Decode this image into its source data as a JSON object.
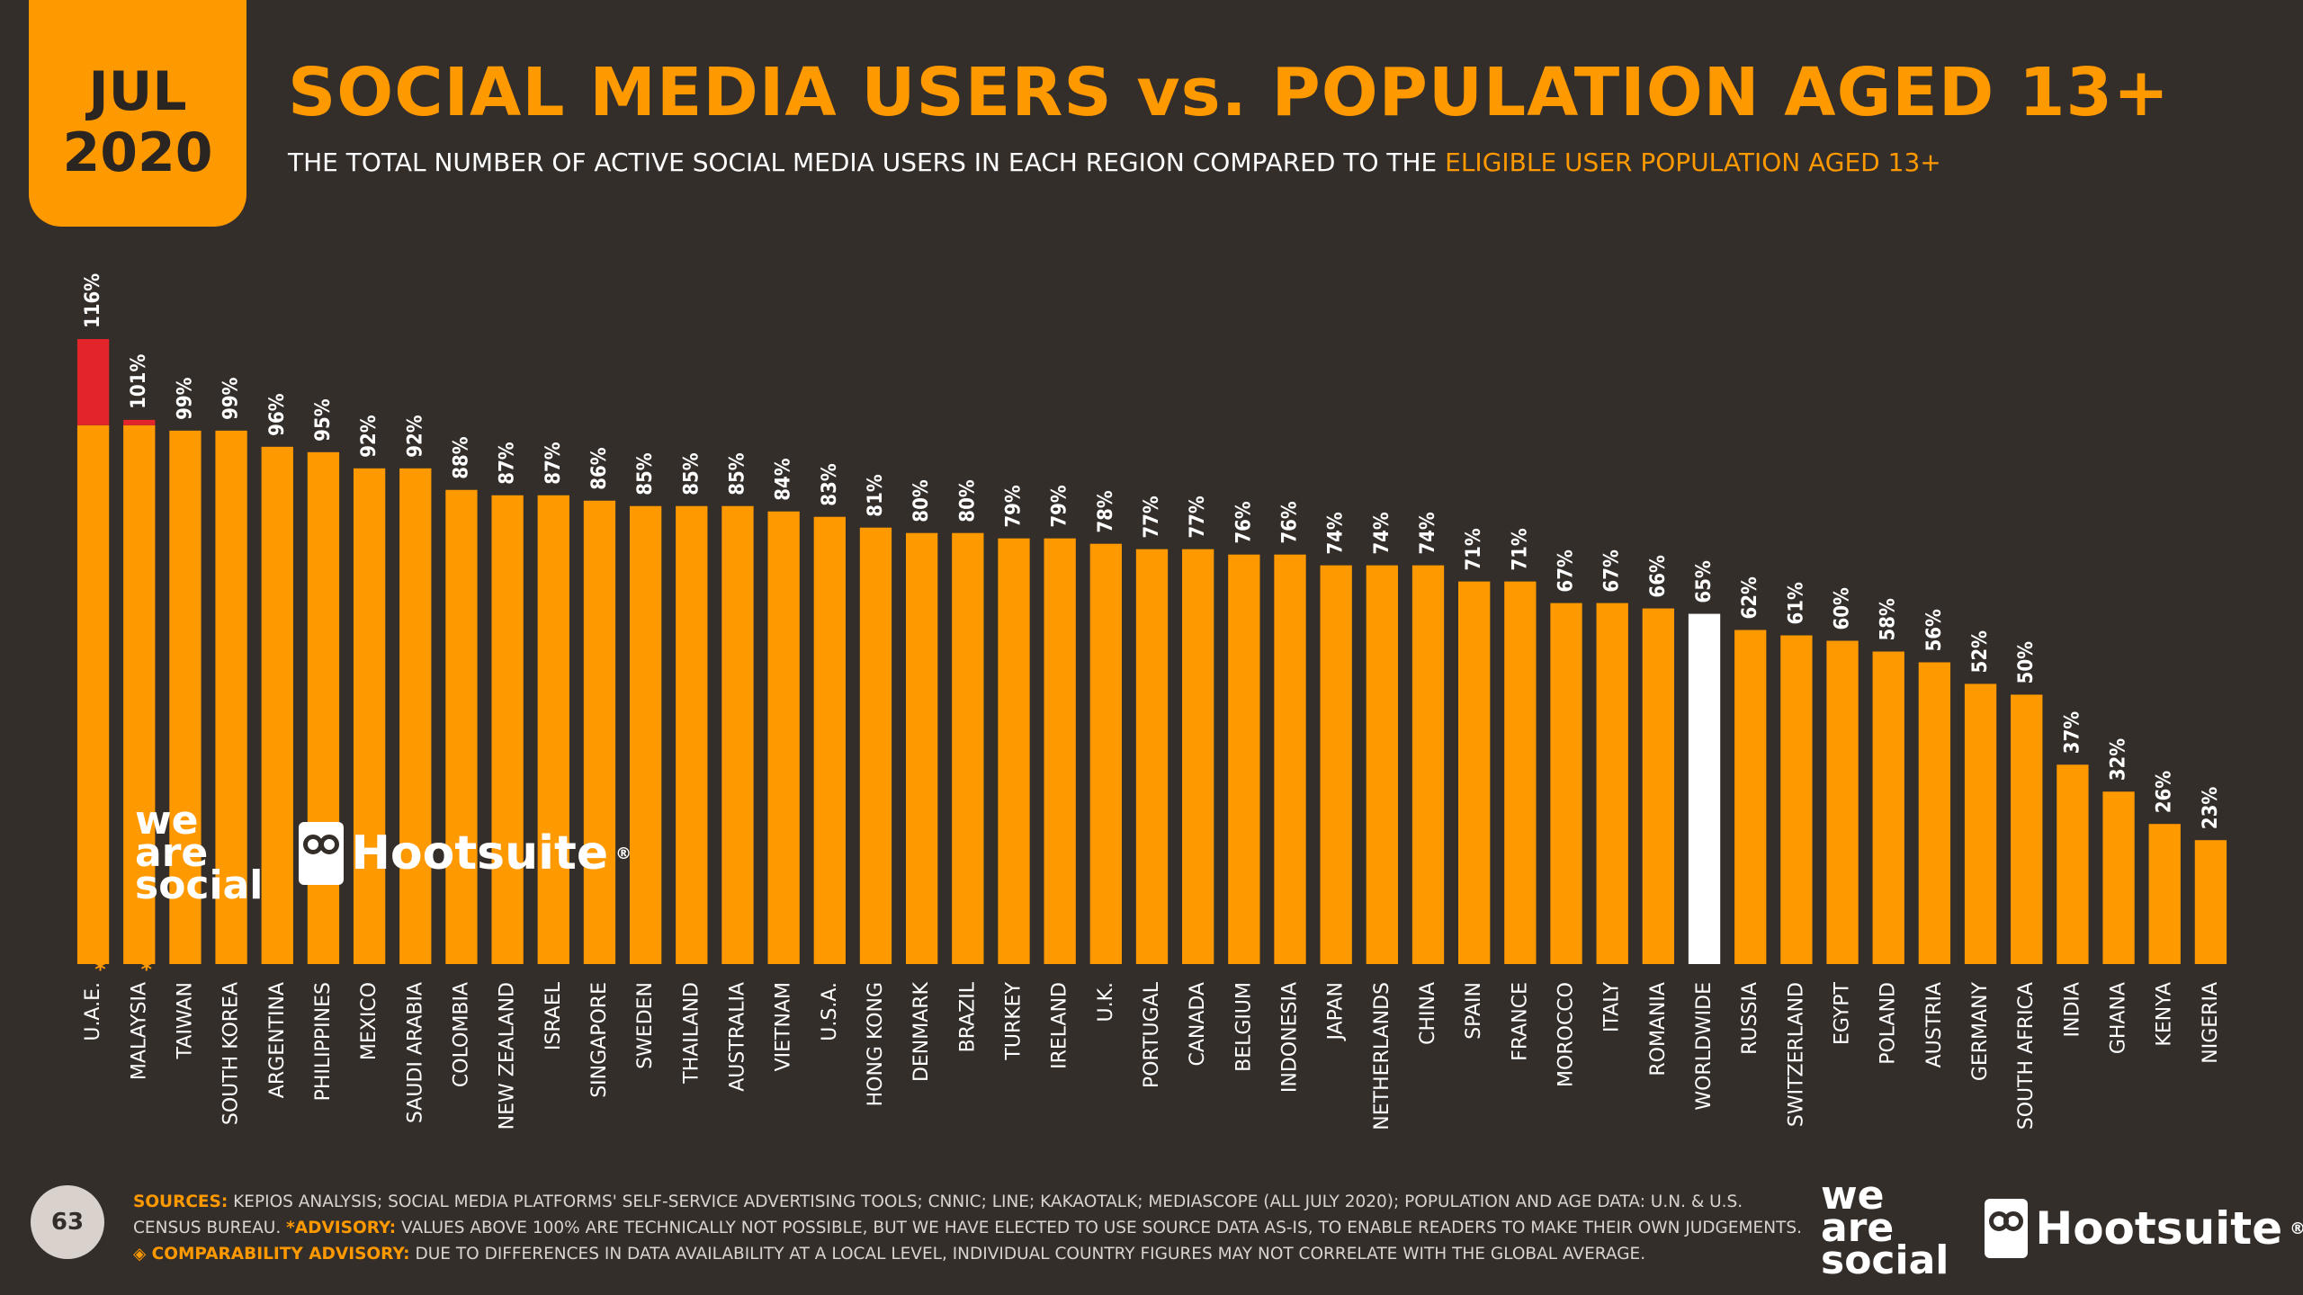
{
  "badge": {
    "month": "JUL",
    "year": "2020"
  },
  "title": "SOCIAL MEDIA USERS vs. POPULATION AGED 13+",
  "subtitle": {
    "main": "THE TOTAL NUMBER OF ACTIVE SOCIAL MEDIA USERS IN EACH REGION COMPARED TO THE ",
    "highlight": "ELIGIBLE USER POPULATION AGED 13+"
  },
  "brand": {
    "we_are_social": [
      "we",
      "are",
      "social"
    ],
    "hootsuite": "Hootsuite",
    "registered": "®"
  },
  "footer": {
    "page_number": "63",
    "sources_label": "SOURCES:",
    "sources_text": " KEPIOS ANALYSIS; SOCIAL MEDIA PLATFORMS' SELF-SERVICE ADVERTISING TOOLS; CNNIC; LINE; KAKAOTALK; MEDIASCOPE (ALL JULY 2020); POPULATION AND AGE DATA: U.N. & U.S. CENSUS BUREAU. ",
    "advisory_label": "*ADVISORY:",
    "advisory_text": " VALUES ABOVE 100% ARE TECHNICALLY NOT POSSIBLE, BUT WE HAVE ELECTED TO USE SOURCE DATA AS-IS, TO ENABLE READERS TO MAKE THEIR OWN JUDGEMENTS. ",
    "comparability_label": "◈ COMPARABILITY ADVISORY:",
    "comparability_text": " DUE TO DIFFERENCES IN DATA AVAILABILITY AT A LOCAL LEVEL, INDIVIDUAL COUNTRY FIGURES MAY NOT CORRELATE WITH THE GLOBAL AVERAGE."
  },
  "colors": {
    "bar": "#ff9900",
    "excess": "#e3242b",
    "highlight": "#ffffff",
    "background": "#342e2b",
    "asterisk": "#ff9900"
  },
  "chart_data": {
    "type": "bar",
    "categories": [
      "U.A.E.",
      "MALAYSIA",
      "TAIWAN",
      "SOUTH KOREA",
      "ARGENTINA",
      "PHILIPPINES",
      "MEXICO",
      "SAUDI ARABIA",
      "COLOMBIA",
      "NEW ZEALAND",
      "ISRAEL",
      "SINGAPORE",
      "SWEDEN",
      "THAILAND",
      "AUSTRALIA",
      "VIETNAM",
      "U.S.A.",
      "HONG KONG",
      "DENMARK",
      "BRAZIL",
      "TURKEY",
      "IRELAND",
      "U.K.",
      "PORTUGAL",
      "CANADA",
      "BELGIUM",
      "INDONESIA",
      "JAPAN",
      "NETHERLANDS",
      "CHINA",
      "SPAIN",
      "FRANCE",
      "MOROCCO",
      "ITALY",
      "ROMANIA",
      "WORLDWIDE",
      "RUSSIA",
      "SWITZERLAND",
      "EGYPT",
      "POLAND",
      "AUSTRIA",
      "GERMANY",
      "SOUTH AFRICA",
      "INDIA",
      "GHANA",
      "KENYA",
      "NIGERIA"
    ],
    "values": [
      116,
      101,
      99,
      99,
      96,
      95,
      92,
      92,
      88,
      87,
      87,
      86,
      85,
      85,
      85,
      84,
      83,
      81,
      80,
      80,
      79,
      79,
      78,
      77,
      77,
      76,
      76,
      74,
      74,
      74,
      71,
      71,
      67,
      67,
      66,
      65,
      62,
      61,
      60,
      58,
      56,
      52,
      50,
      37,
      32,
      26,
      23
    ],
    "value_labels": [
      "116%",
      "101%",
      "99%",
      "99%",
      "96%",
      "95%",
      "92%",
      "92%",
      "88%",
      "87%",
      "87%",
      "86%",
      "85%",
      "85%",
      "85%",
      "84%",
      "83%",
      "81%",
      "80%",
      "80%",
      "79%",
      "79%",
      "78%",
      "77%",
      "77%",
      "76%",
      "76%",
      "74%",
      "74%",
      "74%",
      "71%",
      "71%",
      "67%",
      "67%",
      "66%",
      "65%",
      "62%",
      "61%",
      "60%",
      "58%",
      "56%",
      "52%",
      "50%",
      "37%",
      "32%",
      "26%",
      "23%"
    ],
    "asterisk_categories": [
      "U.A.E.",
      "MALAYSIA"
    ],
    "highlight_category": "WORLDWIDE",
    "excess_threshold": 100,
    "ylim": [
      0,
      116
    ]
  }
}
